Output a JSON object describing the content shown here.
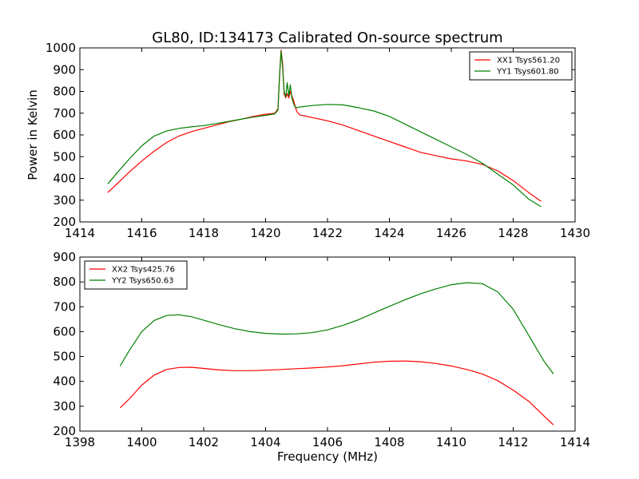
{
  "title": "GL80, ID:134173 Calibrated On-source spectrum",
  "chart_data": [
    {
      "type": "line",
      "xlabel": "",
      "ylabel": "Power in Kelvin",
      "xlim": [
        1414,
        1430
      ],
      "ylim": [
        200,
        1000
      ],
      "xticks": [
        "1414",
        "1416",
        "1418",
        "1420",
        "1422",
        "1424",
        "1426",
        "1428",
        "1430"
      ],
      "yticks": [
        "200",
        "300",
        "400",
        "500",
        "600",
        "700",
        "800",
        "900",
        "1000"
      ],
      "legend_position": "top-right",
      "grid": false,
      "series": [
        {
          "name": "XX1 Tsys561.20",
          "color": "#ff0000",
          "x": [
            1414.9,
            1415.2,
            1415.6,
            1416.0,
            1416.4,
            1416.8,
            1417.2,
            1417.6,
            1418.0,
            1418.4,
            1418.8,
            1419.2,
            1419.6,
            1420.0,
            1420.3,
            1420.4,
            1420.45,
            1420.5,
            1420.55,
            1420.6,
            1420.65,
            1420.7,
            1420.75,
            1420.8,
            1420.85,
            1420.9,
            1420.95,
            1421.0,
            1421.1,
            1421.5,
            1422.0,
            1422.5,
            1423.0,
            1423.5,
            1424.0,
            1424.5,
            1425.0,
            1425.5,
            1426.0,
            1426.5,
            1427.0,
            1427.5,
            1428.0,
            1428.5,
            1428.9
          ],
          "y": [
            335,
            375,
            430,
            480,
            525,
            565,
            595,
            615,
            630,
            645,
            660,
            672,
            685,
            695,
            700,
            720,
            860,
            990,
            930,
            790,
            770,
            790,
            770,
            800,
            780,
            760,
            735,
            710,
            692,
            680,
            665,
            645,
            620,
            595,
            570,
            545,
            520,
            505,
            490,
            480,
            465,
            435,
            390,
            335,
            295
          ]
        },
        {
          "name": "YY1 Tsys601.80",
          "color": "#008000",
          "x": [
            1414.9,
            1415.2,
            1415.6,
            1416.0,
            1416.4,
            1416.8,
            1417.2,
            1417.6,
            1418.0,
            1418.4,
            1418.8,
            1419.2,
            1419.6,
            1420.0,
            1420.3,
            1420.4,
            1420.45,
            1420.5,
            1420.55,
            1420.6,
            1420.65,
            1420.7,
            1420.75,
            1420.8,
            1420.85,
            1420.9,
            1420.95,
            1421.0,
            1421.1,
            1421.5,
            1422.0,
            1422.5,
            1423.0,
            1423.5,
            1424.0,
            1424.5,
            1425.0,
            1425.5,
            1426.0,
            1426.5,
            1427.0,
            1427.5,
            1428.0,
            1428.5,
            1428.9
          ],
          "y": [
            375,
            425,
            490,
            550,
            595,
            618,
            630,
            637,
            643,
            652,
            662,
            672,
            682,
            690,
            697,
            715,
            870,
            985,
            910,
            800,
            775,
            840,
            780,
            830,
            770,
            745,
            730,
            725,
            728,
            735,
            740,
            738,
            725,
            710,
            685,
            650,
            615,
            580,
            545,
            510,
            470,
            420,
            370,
            305,
            270
          ]
        }
      ]
    },
    {
      "type": "line",
      "xlabel": "Frequency (MHz)",
      "ylabel": "",
      "xlim": [
        1398,
        1414
      ],
      "ylim": [
        200,
        900
      ],
      "xticks": [
        "1398",
        "1400",
        "1402",
        "1404",
        "1406",
        "1408",
        "1410",
        "1412",
        "1414"
      ],
      "yticks": [
        "200",
        "300",
        "400",
        "500",
        "600",
        "700",
        "800",
        "900"
      ],
      "legend_position": "top-left",
      "grid": false,
      "series": [
        {
          "name": "XX2 Tsys425.76",
          "color": "#ff0000",
          "x": [
            1399.3,
            1399.6,
            1400.0,
            1400.4,
            1400.8,
            1401.2,
            1401.6,
            1402.0,
            1402.5,
            1403.0,
            1403.5,
            1404.0,
            1404.5,
            1405.0,
            1405.5,
            1406.0,
            1406.5,
            1407.0,
            1407.5,
            1408.0,
            1408.5,
            1409.0,
            1409.5,
            1410.0,
            1410.5,
            1411.0,
            1411.5,
            1412.0,
            1412.5,
            1413.0,
            1413.3
          ],
          "y": [
            293,
            330,
            385,
            425,
            448,
            456,
            457,
            452,
            446,
            443,
            443,
            445,
            448,
            451,
            454,
            458,
            463,
            470,
            477,
            481,
            482,
            479,
            472,
            462,
            448,
            430,
            403,
            365,
            320,
            260,
            225
          ]
        },
        {
          "name": "YY2 Tsys650.63",
          "color": "#008000",
          "x": [
            1399.3,
            1399.6,
            1400.0,
            1400.4,
            1400.8,
            1401.2,
            1401.6,
            1402.0,
            1402.5,
            1403.0,
            1403.5,
            1404.0,
            1404.5,
            1405.0,
            1405.5,
            1406.0,
            1406.5,
            1407.0,
            1407.5,
            1408.0,
            1408.5,
            1409.0,
            1409.5,
            1410.0,
            1410.5,
            1411.0,
            1411.5,
            1412.0,
            1412.5,
            1413.0,
            1413.3
          ],
          "y": [
            462,
            525,
            600,
            645,
            665,
            668,
            660,
            646,
            628,
            612,
            600,
            593,
            590,
            591,
            596,
            607,
            625,
            648,
            675,
            702,
            728,
            752,
            772,
            789,
            797,
            793,
            760,
            690,
            585,
            480,
            430
          ]
        }
      ]
    }
  ]
}
